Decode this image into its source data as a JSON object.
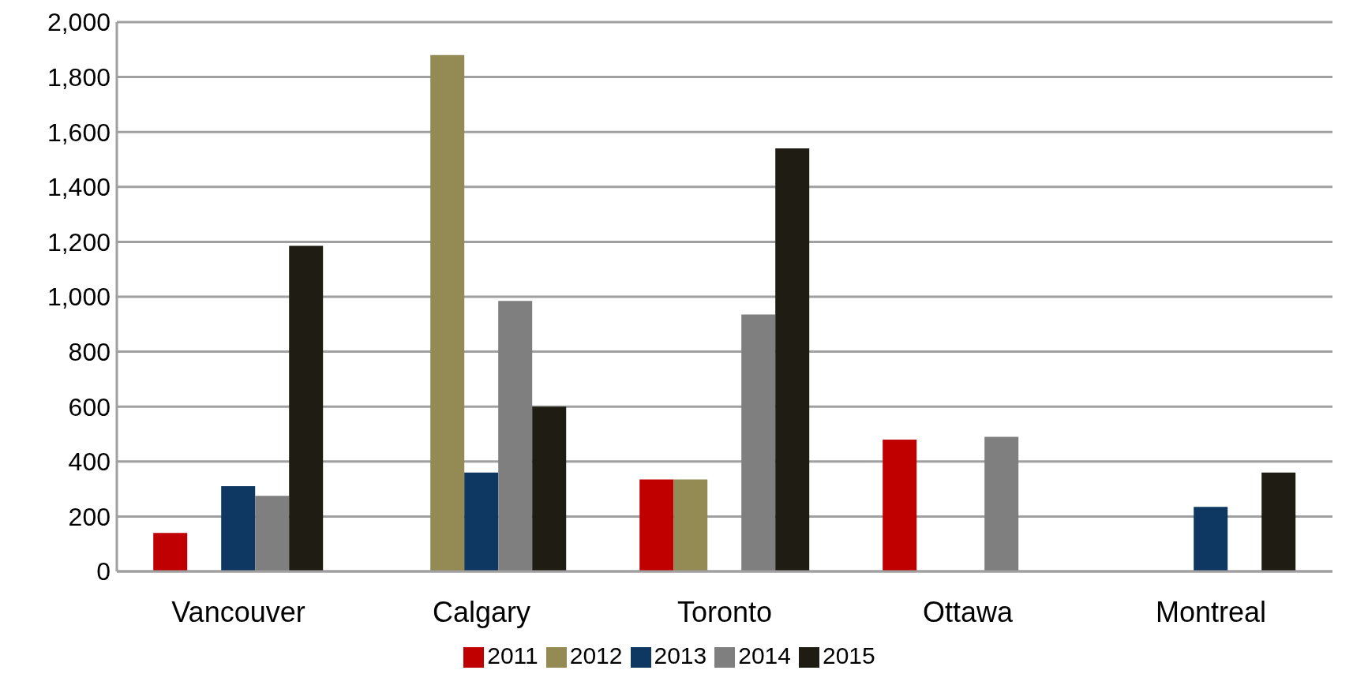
{
  "chart_data": {
    "type": "bar",
    "categories": [
      "Vancouver",
      "Calgary",
      "Toronto",
      "Ottawa",
      "Montreal"
    ],
    "series": [
      {
        "name": "2011",
        "color": "#c00000",
        "values": [
          140,
          null,
          335,
          480,
          null
        ]
      },
      {
        "name": "2012",
        "color": "#948a54",
        "values": [
          null,
          1880,
          335,
          null,
          null
        ]
      },
      {
        "name": "2013",
        "color": "#0e3761",
        "values": [
          310,
          360,
          null,
          null,
          235
        ]
      },
      {
        "name": "2014",
        "color": "#7f7f7f",
        "values": [
          275,
          985,
          935,
          490,
          null
        ]
      },
      {
        "name": "2015",
        "color": "#1f1d13",
        "values": [
          1185,
          600,
          1540,
          null,
          360
        ]
      }
    ],
    "ylim": [
      0,
      2000
    ],
    "yticks": [
      0,
      200,
      400,
      600,
      800,
      {
        "value": 1000,
        "label": "1,000"
      },
      {
        "value": 1200,
        "label": "1,200"
      },
      {
        "value": 1400,
        "label": "1,400"
      },
      {
        "value": 1600,
        "label": "1,600"
      },
      {
        "value": 1800,
        "label": "1,800"
      },
      {
        "value": 2000,
        "label": "2,000"
      }
    ],
    "grid": "y",
    "legend": "bottom"
  }
}
